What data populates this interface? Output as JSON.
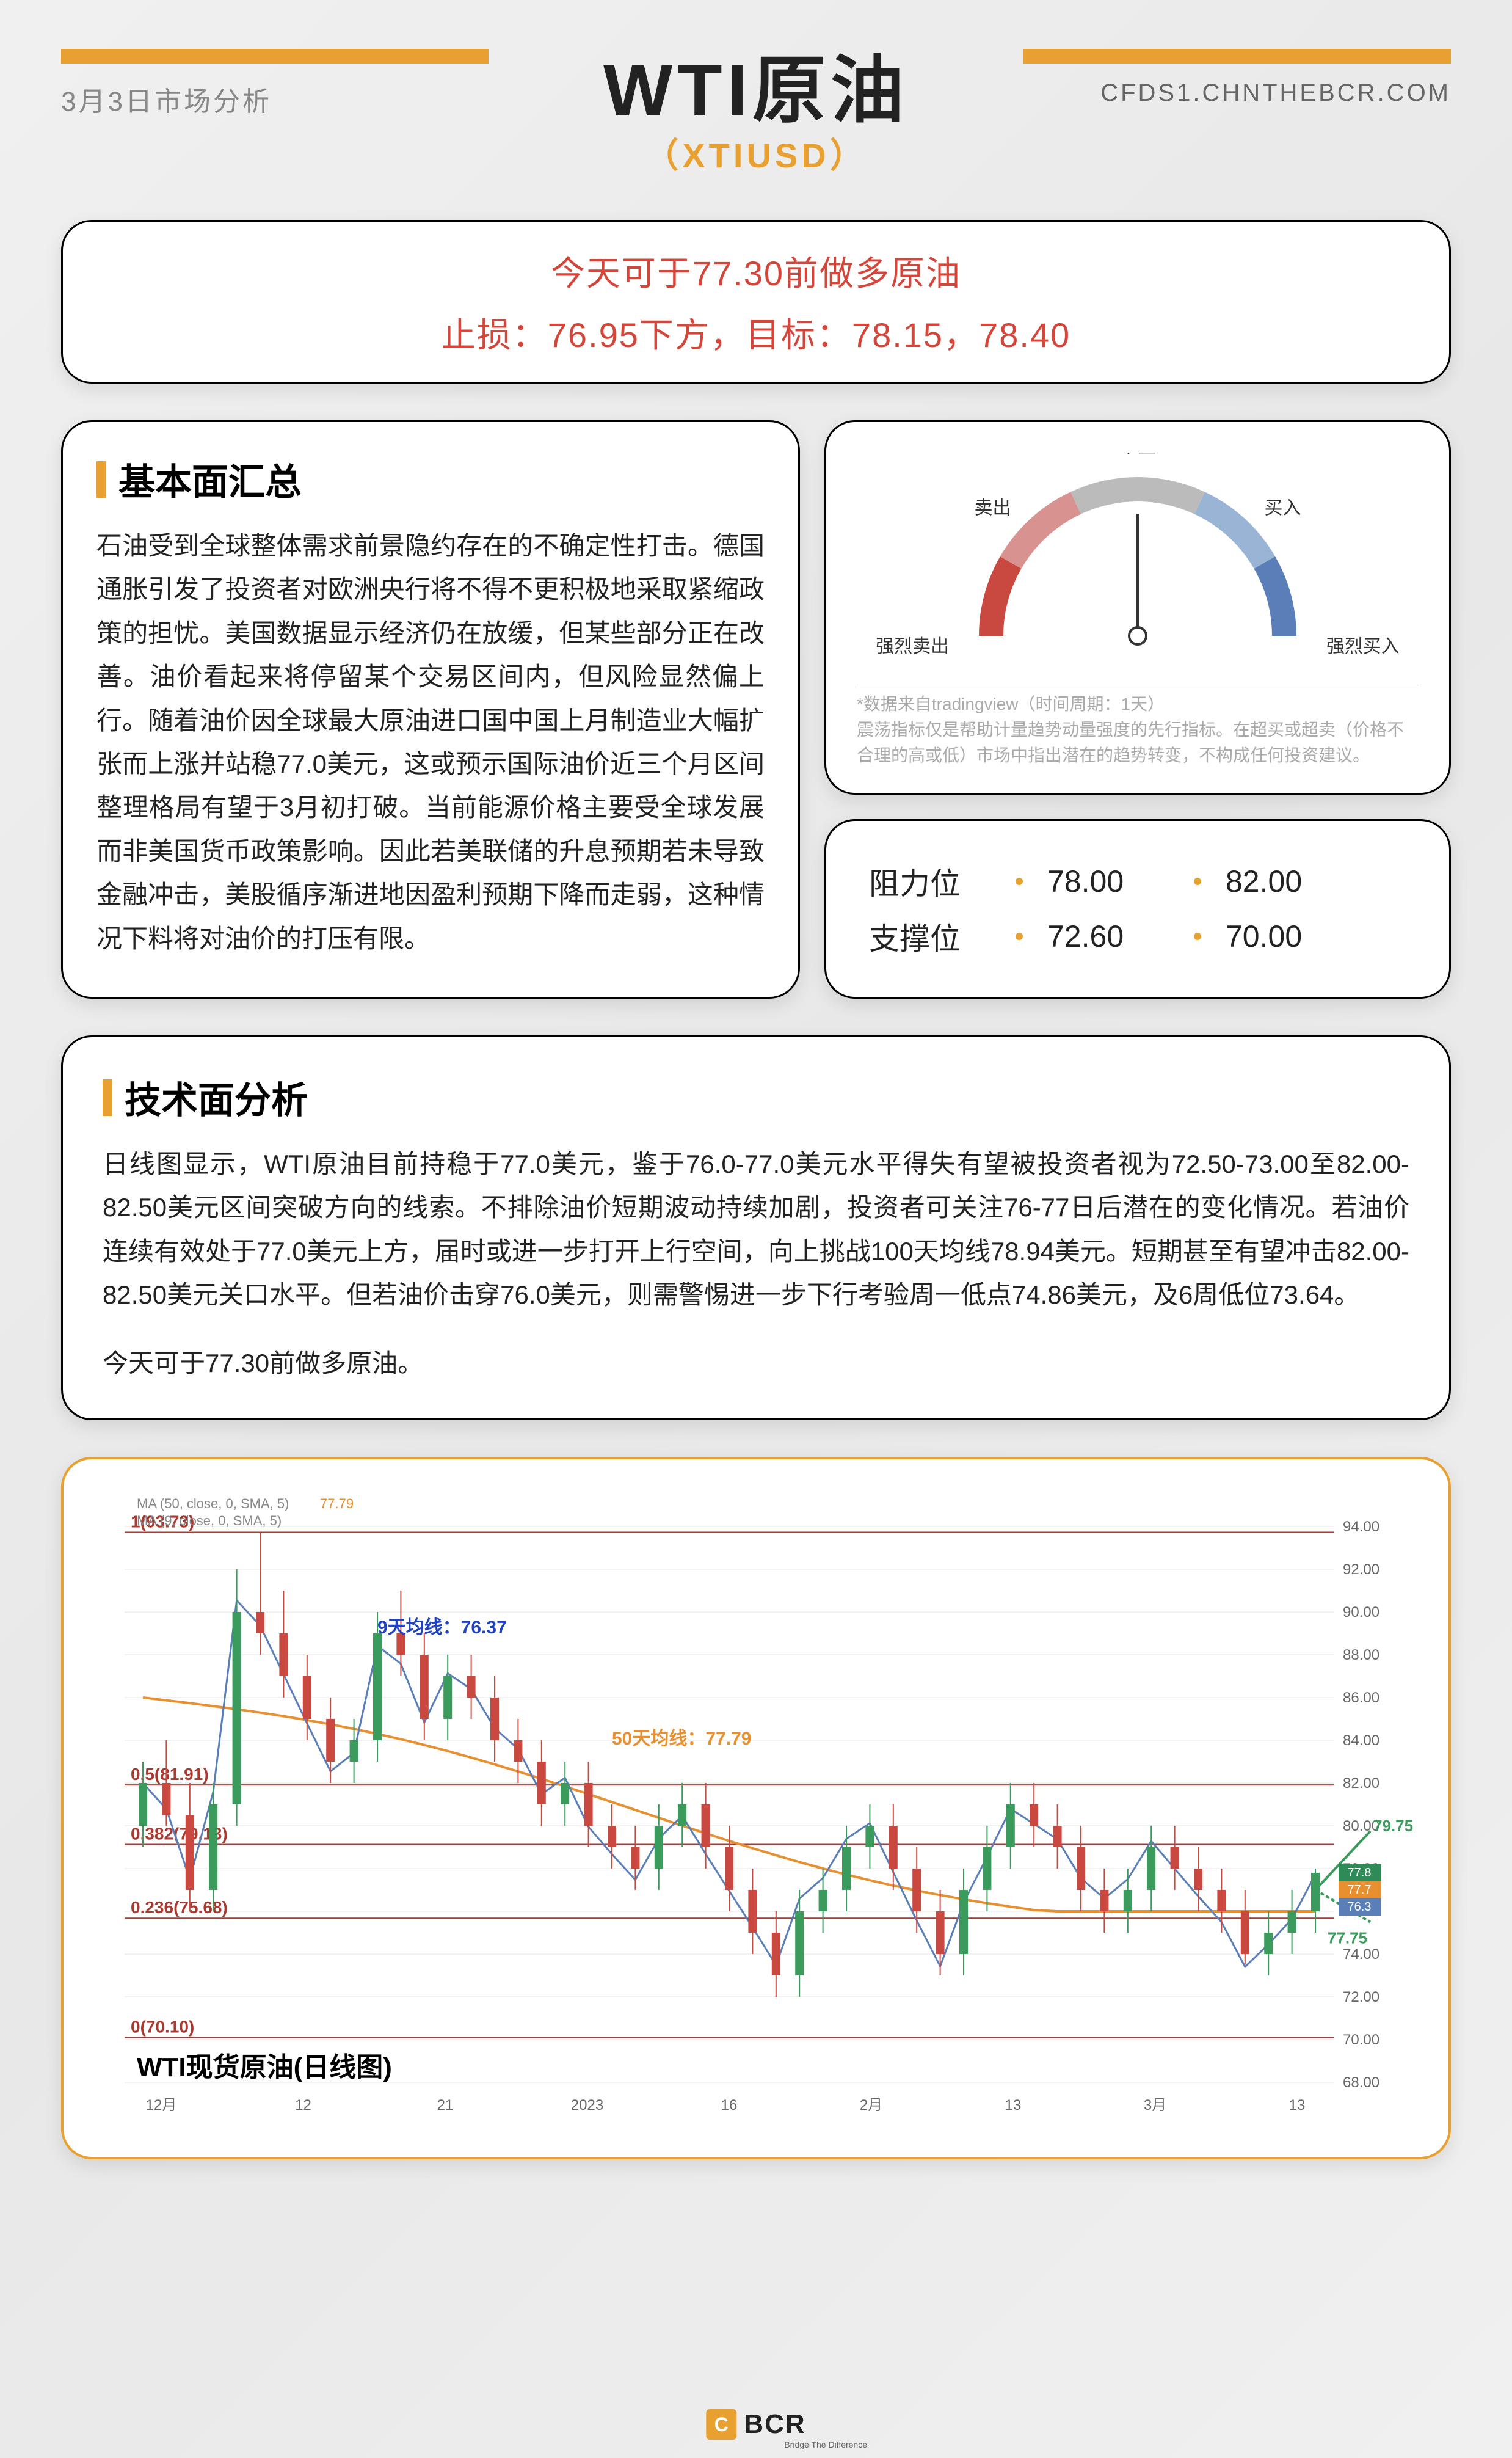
{
  "header": {
    "date": "3月3日市场分析",
    "url": "CFDS1.CHNTHEBCR.COM",
    "title": "WTI原油",
    "subtitle": "（XTIUSD）"
  },
  "recommend": {
    "line1": "今天可于77.30前做多原油",
    "line2": "止损：76.95下方，目标：78.15，78.40"
  },
  "fundamentals": {
    "title": "基本面汇总",
    "body": "石油受到全球整体需求前景隐约存在的不确定性打击。德国通胀引发了投资者对欧洲央行将不得不更积极地采取紧缩政策的担忧。美国数据显示经济仍在放缓，但某些部分正在改善。油价看起来将停留某个交易区间内，但风险显然偏上行。随着油价因全球最大原油进口国中国上月制造业大幅扩张而上涨并站稳77.0美元，这或预示国际油价近三个月区间整理格局有望于3月初打破。当前能源价格主要受全球发展而非美国货币政策影响。因此若美联储的升息预期若未导致金融冲击，美股循序渐进地因盈利预期下降而走弱，这种情况下料将对油价的打压有限。"
  },
  "gauge": {
    "labels": {
      "strong_sell": "强烈卖出",
      "sell": "卖出",
      "neutral": "中立",
      "buy": "买入",
      "strong_buy": "强烈买入"
    },
    "colors": {
      "strong_sell": "#c94840",
      "sell": "#d8928f",
      "neutral": "#bbbbbb",
      "buy": "#9ab4d6",
      "strong_buy": "#5a7fb8"
    },
    "needle_angle_deg": 0,
    "note_source": "*数据来自tradingview（时间周期：1天）",
    "note_desc": "震荡指标仅是帮助计量趋势动量强度的先行指标。在超买或超卖（价格不合理的高或低）市场中指出潜在的趋势转变，不构成任何投资建议。"
  },
  "levels": {
    "resistance_label": "阻力位",
    "support_label": "支撑位",
    "resistance": [
      "78.00",
      "82.00"
    ],
    "support": [
      "72.60",
      "70.00"
    ]
  },
  "technical": {
    "title": "技术面分析",
    "body": "日线图显示，WTI原油目前持稳于77.0美元，鉴于76.0-77.0美元水平得失有望被投资者视为72.50-73.00至82.00-82.50美元区间突破方向的线索。不排除油价短期波动持续加剧，投资者可关注76-77日后潜在的变化情况。若油价连续有效处于77.0美元上方，届时或进一步打开上行空间，向上挑战100天均线78.94美元。短期甚至有望冲击82.00-82.50美元关口水平。但若油价击穿76.0美元，则需警惕进一步下行考验周一低点74.86美元，及6周低位73.64。",
    "body2": "今天可于77.30前做多原油。"
  },
  "chart": {
    "title": "WTI现货原油(日线图)",
    "ma_labels": {
      "ma50": "MA (50, close, 0, SMA, 5)",
      "ma50_val": "77.79",
      "ma9": "MA (9, close, 0, SMA, 5)",
      "ma9_val": ""
    },
    "annotations": {
      "fib1": "1(93.73)",
      "ma9_text": "9天均线：76.37",
      "ma50_text": "50天均线：77.79",
      "fib05": "0.5(81.91)",
      "fib0382": "0.382(79.13)",
      "fib0236": "0.236(75.68)",
      "fib0": "0(70.10)",
      "target_up": "79.75",
      "target_down": "77.75"
    },
    "right_labels": [
      "77.8",
      "77.7",
      "76.3"
    ],
    "right_colors": [
      "#2e8b57",
      "#e89030",
      "#5a7fb8"
    ],
    "y_axis": {
      "min": 68,
      "max": 94,
      "step": 2,
      "ticks": [
        "94.00",
        "92.00",
        "90.00",
        "88.00",
        "86.00",
        "84.00",
        "82.00",
        "80.00",
        "78.00",
        "76.00",
        "74.00",
        "72.00",
        "70.00",
        "68.00"
      ]
    },
    "x_axis": {
      "labels": [
        "12月",
        "12",
        "21",
        "2023",
        "16",
        "2月",
        "13",
        "3月",
        "13"
      ]
    },
    "fib_levels": [
      {
        "label": "1(93.73)",
        "y": 93.73,
        "color": "#aa3a30"
      },
      {
        "label": "0.5(81.91)",
        "y": 81.91,
        "color": "#aa3a30"
      },
      {
        "label": "0.382(79.13)",
        "y": 79.13,
        "color": "#aa3a30"
      },
      {
        "label": "0.236(75.68)",
        "y": 75.68,
        "color": "#aa3a30"
      },
      {
        "label": "0(70.10)",
        "y": 70.1,
        "color": "#aa3a30"
      }
    ],
    "candles": [
      {
        "x": 0,
        "o": 80,
        "h": 83,
        "l": 79,
        "c": 82,
        "up": true
      },
      {
        "x": 1,
        "o": 82,
        "h": 84,
        "l": 80,
        "c": 80.5,
        "up": false
      },
      {
        "x": 2,
        "o": 80.5,
        "h": 82,
        "l": 76,
        "c": 77,
        "up": false
      },
      {
        "x": 3,
        "o": 77,
        "h": 82,
        "l": 76,
        "c": 81,
        "up": true
      },
      {
        "x": 4,
        "o": 81,
        "h": 92,
        "l": 80,
        "c": 90,
        "up": true
      },
      {
        "x": 5,
        "o": 90,
        "h": 93.73,
        "l": 88,
        "c": 89,
        "up": false
      },
      {
        "x": 6,
        "o": 89,
        "h": 91,
        "l": 86,
        "c": 87,
        "up": false
      },
      {
        "x": 7,
        "o": 87,
        "h": 88,
        "l": 84,
        "c": 85,
        "up": false
      },
      {
        "x": 8,
        "o": 85,
        "h": 86,
        "l": 82,
        "c": 83,
        "up": false
      },
      {
        "x": 9,
        "o": 83,
        "h": 85,
        "l": 82,
        "c": 84,
        "up": true
      },
      {
        "x": 10,
        "o": 84,
        "h": 90,
        "l": 83,
        "c": 89,
        "up": true
      },
      {
        "x": 11,
        "o": 89,
        "h": 91,
        "l": 87,
        "c": 88,
        "up": false
      },
      {
        "x": 12,
        "o": 88,
        "h": 89,
        "l": 84,
        "c": 85,
        "up": false
      },
      {
        "x": 13,
        "o": 85,
        "h": 88,
        "l": 84,
        "c": 87,
        "up": true
      },
      {
        "x": 14,
        "o": 87,
        "h": 88,
        "l": 85,
        "c": 86,
        "up": false
      },
      {
        "x": 15,
        "o": 86,
        "h": 87,
        "l": 83,
        "c": 84,
        "up": false
      },
      {
        "x": 16,
        "o": 84,
        "h": 85,
        "l": 82,
        "c": 83,
        "up": false
      },
      {
        "x": 17,
        "o": 83,
        "h": 84,
        "l": 80,
        "c": 81,
        "up": false
      },
      {
        "x": 18,
        "o": 81,
        "h": 83,
        "l": 80,
        "c": 82,
        "up": true
      },
      {
        "x": 19,
        "o": 82,
        "h": 83,
        "l": 79,
        "c": 80,
        "up": false
      },
      {
        "x": 20,
        "o": 80,
        "h": 81,
        "l": 78,
        "c": 79,
        "up": false
      },
      {
        "x": 21,
        "o": 79,
        "h": 80,
        "l": 77,
        "c": 78,
        "up": false
      },
      {
        "x": 22,
        "o": 78,
        "h": 81,
        "l": 77,
        "c": 80,
        "up": true
      },
      {
        "x": 23,
        "o": 80,
        "h": 82,
        "l": 79,
        "c": 81,
        "up": true
      },
      {
        "x": 24,
        "o": 81,
        "h": 82,
        "l": 78,
        "c": 79,
        "up": false
      },
      {
        "x": 25,
        "o": 79,
        "h": 80,
        "l": 76,
        "c": 77,
        "up": false
      },
      {
        "x": 26,
        "o": 77,
        "h": 78,
        "l": 74,
        "c": 75,
        "up": false
      },
      {
        "x": 27,
        "o": 75,
        "h": 76,
        "l": 72,
        "c": 73,
        "up": false
      },
      {
        "x": 28,
        "o": 73,
        "h": 77,
        "l": 72,
        "c": 76,
        "up": true
      },
      {
        "x": 29,
        "o": 76,
        "h": 78,
        "l": 75,
        "c": 77,
        "up": true
      },
      {
        "x": 30,
        "o": 77,
        "h": 80,
        "l": 76,
        "c": 79,
        "up": true
      },
      {
        "x": 31,
        "o": 79,
        "h": 81,
        "l": 78,
        "c": 80,
        "up": true
      },
      {
        "x": 32,
        "o": 80,
        "h": 81,
        "l": 77,
        "c": 78,
        "up": false
      },
      {
        "x": 33,
        "o": 78,
        "h": 79,
        "l": 75,
        "c": 76,
        "up": false
      },
      {
        "x": 34,
        "o": 76,
        "h": 77,
        "l": 73,
        "c": 74,
        "up": false
      },
      {
        "x": 35,
        "o": 74,
        "h": 78,
        "l": 73,
        "c": 77,
        "up": true
      },
      {
        "x": 36,
        "o": 77,
        "h": 80,
        "l": 76,
        "c": 79,
        "up": true
      },
      {
        "x": 37,
        "o": 79,
        "h": 82,
        "l": 78,
        "c": 81,
        "up": true
      },
      {
        "x": 38,
        "o": 81,
        "h": 82,
        "l": 79,
        "c": 80,
        "up": false
      },
      {
        "x": 39,
        "o": 80,
        "h": 81,
        "l": 78,
        "c": 79,
        "up": false
      },
      {
        "x": 40,
        "o": 79,
        "h": 80,
        "l": 76,
        "c": 77,
        "up": false
      },
      {
        "x": 41,
        "o": 77,
        "h": 78,
        "l": 75,
        "c": 76,
        "up": false
      },
      {
        "x": 42,
        "o": 76,
        "h": 78,
        "l": 75,
        "c": 77,
        "up": true
      },
      {
        "x": 43,
        "o": 77,
        "h": 80,
        "l": 76,
        "c": 79,
        "up": true
      },
      {
        "x": 44,
        "o": 79,
        "h": 80,
        "l": 77,
        "c": 78,
        "up": false
      },
      {
        "x": 45,
        "o": 78,
        "h": 79,
        "l": 76,
        "c": 77,
        "up": false
      },
      {
        "x": 46,
        "o": 77,
        "h": 78,
        "l": 75,
        "c": 76,
        "up": false
      },
      {
        "x": 47,
        "o": 76,
        "h": 77,
        "l": 73.5,
        "c": 74,
        "up": false
      },
      {
        "x": 48,
        "o": 74,
        "h": 76,
        "l": 73,
        "c": 75,
        "up": true
      },
      {
        "x": 49,
        "o": 75,
        "h": 77,
        "l": 74,
        "c": 76,
        "up": true
      },
      {
        "x": 50,
        "o": 76,
        "h": 78,
        "l": 75,
        "c": 77.8,
        "up": true
      }
    ],
    "ma50_line": "#e89030",
    "ma9_line": "#5a7fb8",
    "up_color": "#3a9b5c",
    "down_color": "#c94840",
    "grid_color": "#e5e5e5",
    "background": "#ffffff"
  },
  "footer": {
    "brand": "BCR",
    "tagline": "Bridge The Difference",
    "logo_char": "C"
  }
}
